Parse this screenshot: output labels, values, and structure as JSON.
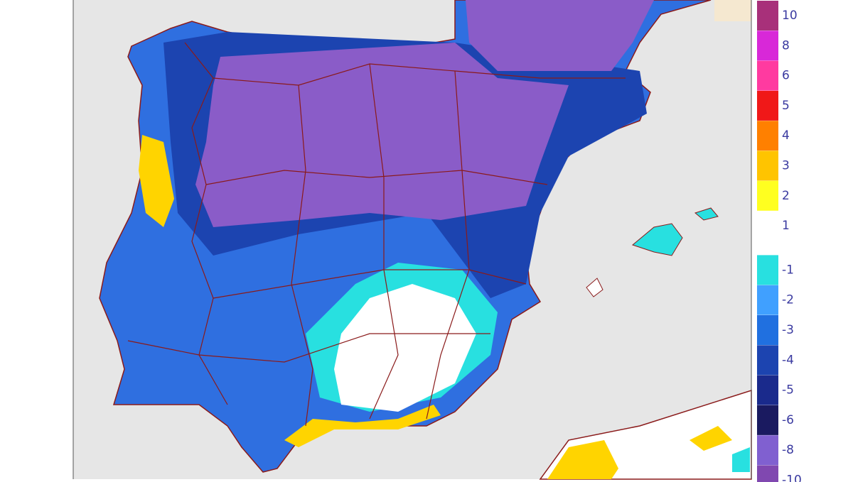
{
  "legend": {
    "items": [
      {
        "label": "10",
        "color": "#a8307a"
      },
      {
        "label": "8",
        "color": "#d828d8"
      },
      {
        "label": "6",
        "color": "#ff3aa0"
      },
      {
        "label": "5",
        "color": "#f01818"
      },
      {
        "label": "4",
        "color": "#ff8000"
      },
      {
        "label": "3",
        "color": "#ffc400"
      },
      {
        "label": "2",
        "color": "#ffff20"
      },
      {
        "label": "1",
        "color": "#ffffff"
      },
      {
        "label": "-1",
        "color": "#28e0e0"
      },
      {
        "label": "-2",
        "color": "#40a0ff"
      },
      {
        "label": "-3",
        "color": "#2070e0"
      },
      {
        "label": "-4",
        "color": "#1c44b0"
      },
      {
        "label": "-5",
        "color": "#1a2a8c"
      },
      {
        "label": "-6",
        "color": "#1a1a60"
      },
      {
        "label": "-8",
        "color": "#8060d0"
      },
      {
        "label": "-10",
        "color": "#8048b0"
      }
    ]
  }
}
